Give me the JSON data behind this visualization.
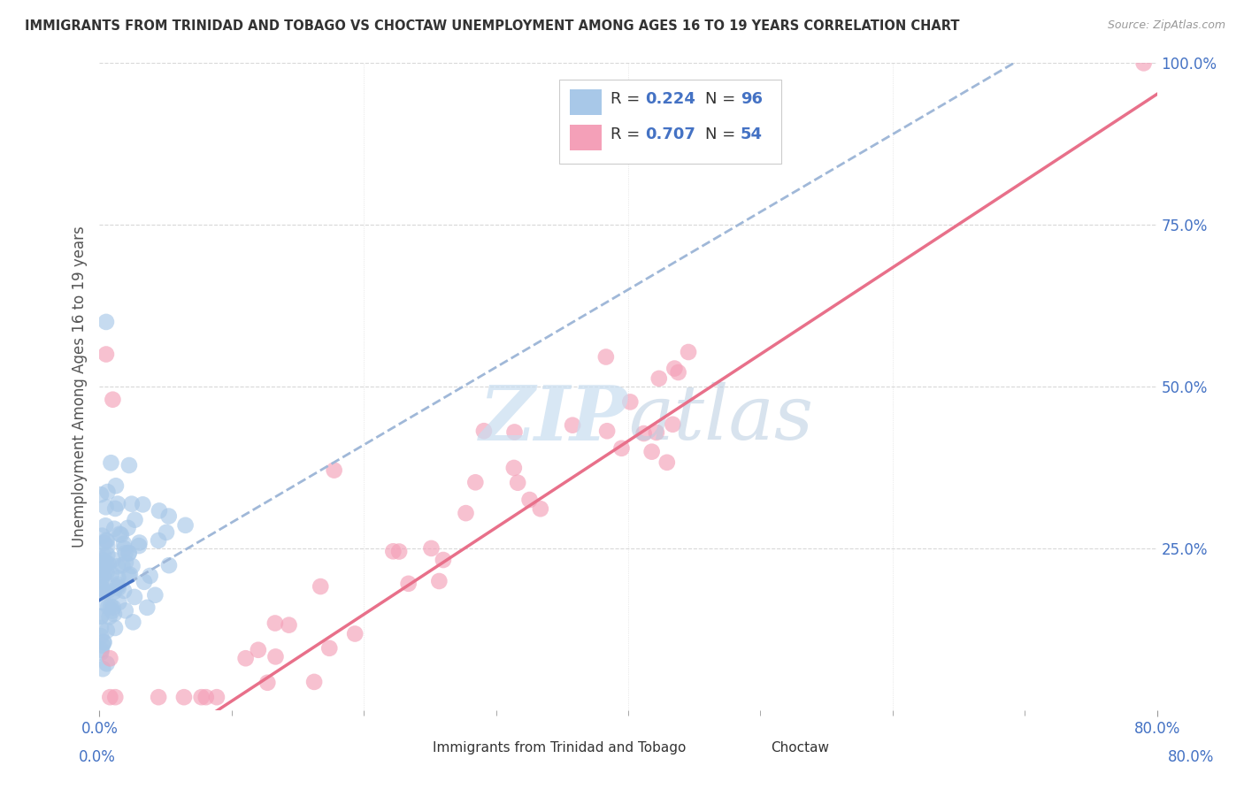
{
  "title": "IMMIGRANTS FROM TRINIDAD AND TOBAGO VS CHOCTAW UNEMPLOYMENT AMONG AGES 16 TO 19 YEARS CORRELATION CHART",
  "source": "Source: ZipAtlas.com",
  "ylabel": "Unemployment Among Ages 16 to 19 years",
  "xlim": [
    0.0,
    0.8
  ],
  "ylim": [
    0.0,
    1.0
  ],
  "legend_R1": "0.224",
  "legend_N1": "96",
  "legend_R2": "0.707",
  "legend_N2": "54",
  "blue_color": "#a8c8e8",
  "pink_color": "#f4a0b8",
  "trend_blue_color": "#a0b8d8",
  "trend_pink_color": "#e8708a",
  "solid_blue_color": "#4472c4",
  "watermark_color": "#d8e8f8",
  "watermark": "ZIPatlas",
  "label1": "Immigrants from Trinidad and Tobago",
  "label2": "Choctaw",
  "tick_color": "#4472c4",
  "grid_color": "#d8d8d8",
  "title_color": "#333333",
  "source_color": "#999999"
}
